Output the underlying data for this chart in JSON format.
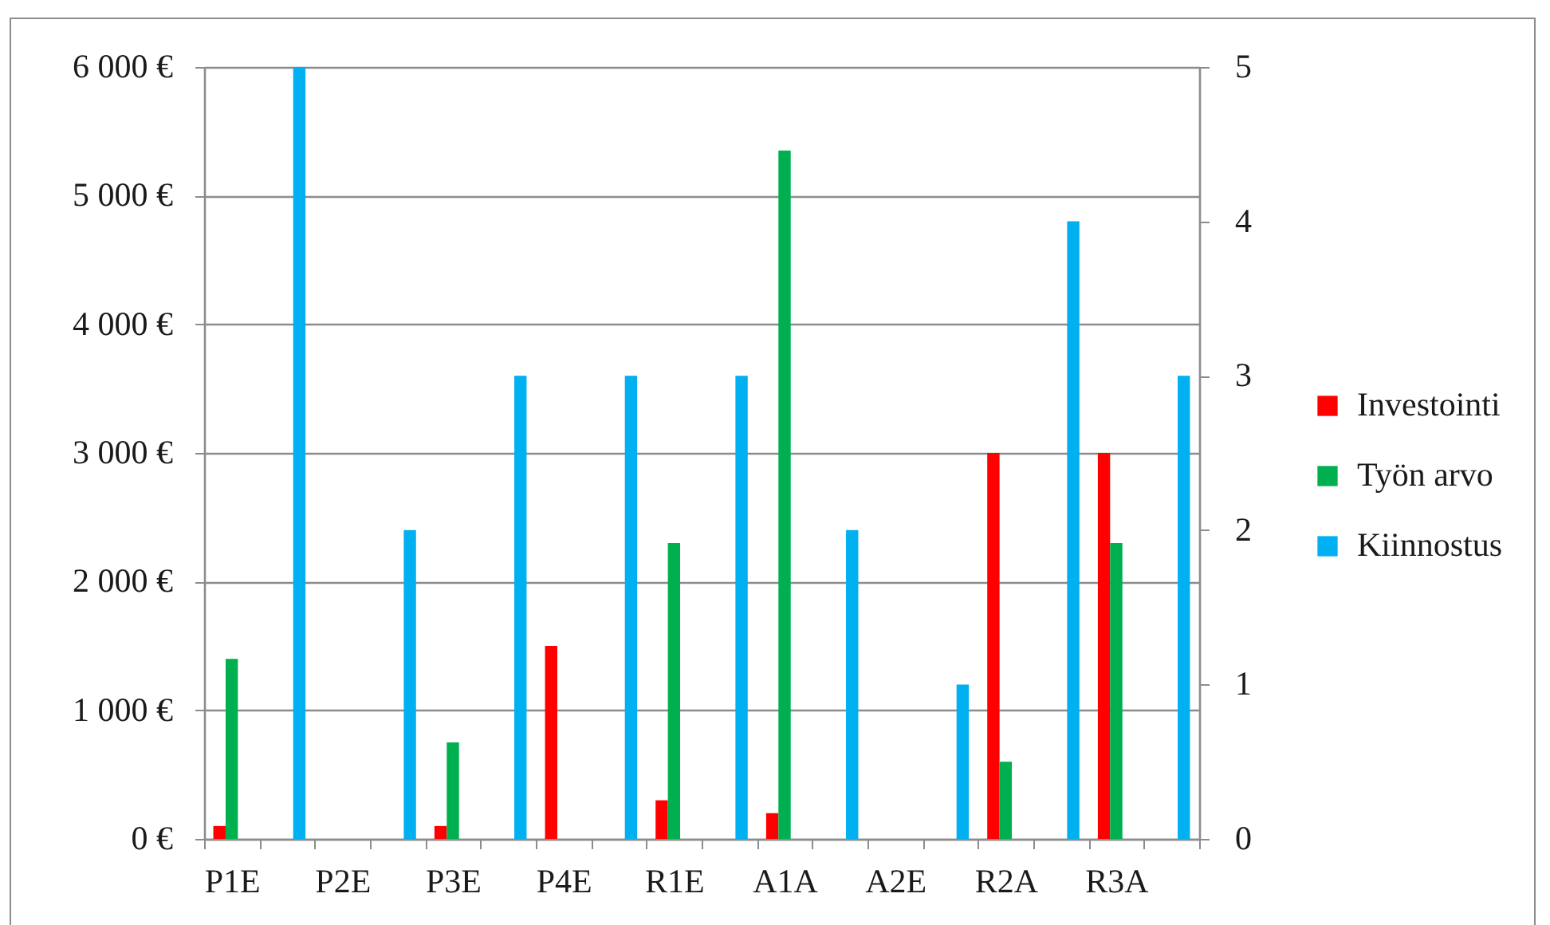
{
  "chart_data": {
    "type": "bar",
    "categories": [
      "P1E",
      null,
      "P2E",
      null,
      "P3E",
      null,
      "P4E",
      null,
      "R1E",
      null,
      "A1A",
      null,
      "A2E",
      null,
      "R2A",
      null,
      "R3A",
      null
    ],
    "series": [
      {
        "name": "Investointi",
        "color": "#ff0000",
        "values": [
          100,
          null,
          null,
          null,
          100,
          null,
          1500,
          null,
          300,
          null,
          200,
          null,
          null,
          null,
          3000,
          null,
          3000,
          null
        ]
      },
      {
        "name": "Työn arvo",
        "color": "#00b050",
        "values": [
          1400,
          null,
          null,
          null,
          750,
          null,
          null,
          null,
          2300,
          null,
          5350,
          null,
          null,
          null,
          600,
          null,
          2300,
          null
        ]
      },
      {
        "name": "Kiinnostus",
        "color": "#00b0f0",
        "axis": "y2",
        "values": [
          null,
          5,
          null,
          2,
          null,
          3,
          null,
          3,
          null,
          3,
          null,
          2,
          null,
          1,
          null,
          4,
          null,
          3
        ]
      }
    ],
    "ylim": [
      0,
      6000
    ],
    "yticks": [
      {
        "value": 0,
        "label": "0 €"
      },
      {
        "value": 1000,
        "label": "1 000 €"
      },
      {
        "value": 2000,
        "label": "2 000 €"
      },
      {
        "value": 3000,
        "label": "3 000 €"
      },
      {
        "value": 4000,
        "label": "4 000 €"
      },
      {
        "value": 5000,
        "label": "5 000 €"
      },
      {
        "value": 6000,
        "label": "6 000 €"
      }
    ],
    "y2lim": [
      0,
      5
    ],
    "y2ticks": [
      0,
      1,
      2,
      3,
      4,
      5
    ],
    "grid": "y",
    "legend": "right"
  }
}
